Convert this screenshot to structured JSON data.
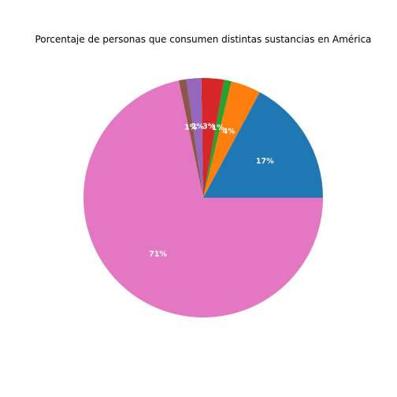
{
  "chart_data": {
    "type": "pie",
    "title": "Porcentaje de personas que consumen distintas sustancias en América",
    "slices": [
      {
        "value": 17,
        "label": "17%",
        "color": "#1f77b4"
      },
      {
        "value": 4,
        "label": "4%",
        "color": "#ff7f0e"
      },
      {
        "value": 1,
        "label": "1%",
        "color": "#2ca02c"
      },
      {
        "value": 3,
        "label": "3%",
        "color": "#d62728"
      },
      {
        "value": 2,
        "label": "2%",
        "color": "#9467bd"
      },
      {
        "value": 1,
        "label": "1%",
        "color": "#8c564b"
      },
      {
        "value": 71,
        "label": "71%",
        "color": "#e377c2"
      }
    ],
    "start_angle_deg": 0,
    "direction": "counterclockwise",
    "legend": "none"
  }
}
